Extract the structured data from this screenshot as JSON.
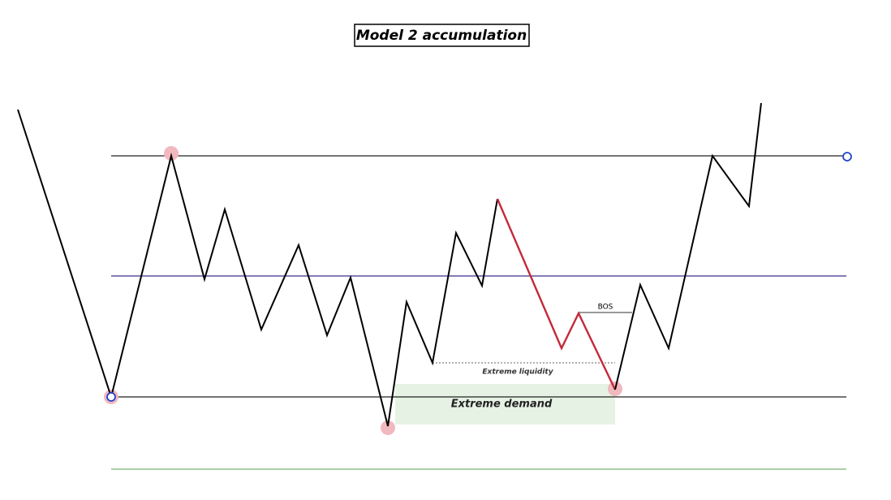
{
  "title": "Model 2 accumulation",
  "labels": {
    "bos": "BOS",
    "extreme_liquidity": "Extreme liquidity",
    "extreme_demand": "Extreme demand"
  }
}
